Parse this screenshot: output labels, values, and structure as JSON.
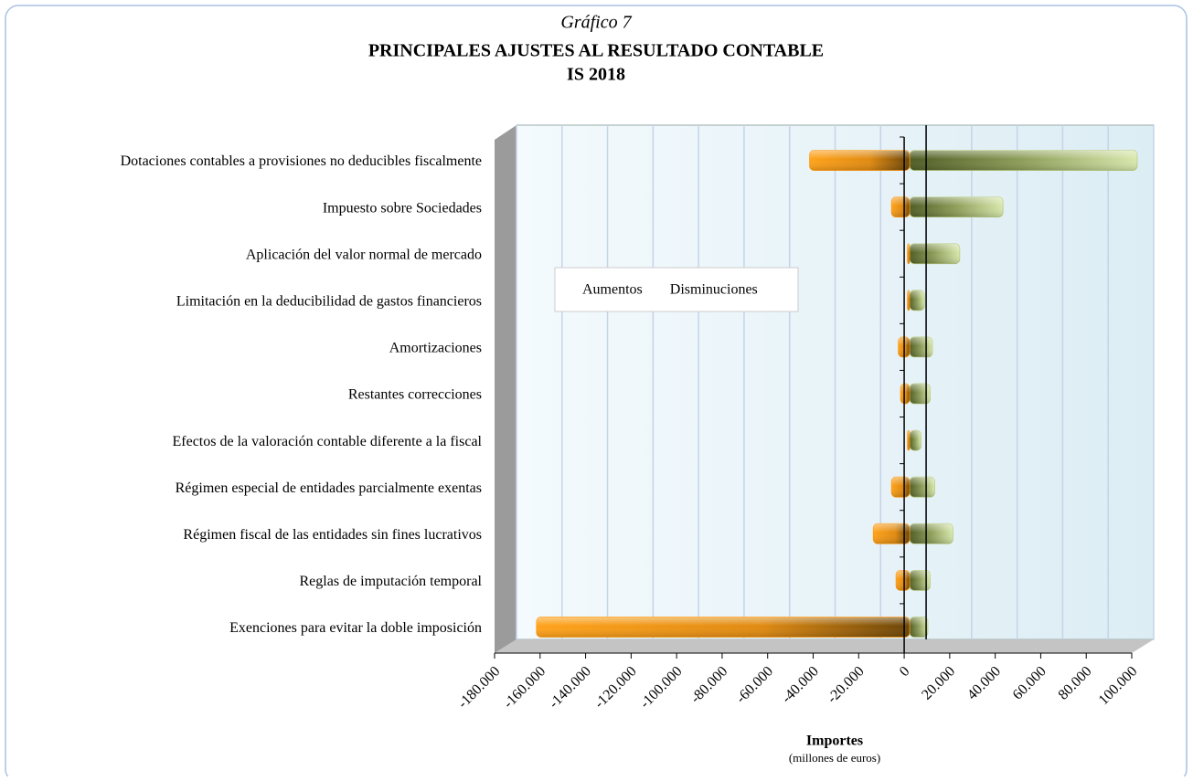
{
  "chart_data": {
    "type": "bar",
    "orientation": "horizontal",
    "title_prefix": "Gráfico 7",
    "title": "PRINCIPALES AJUSTES AL RESULTADO CONTABLE",
    "subtitle": "IS 2018",
    "x_label": "Importes",
    "x_label_note": "(millones de euros)",
    "categories": [
      "Dotaciones contables a provisiones no deducibles fiscalmente",
      "Impuesto sobre Sociedades",
      "Aplicación del valor normal de mercado",
      "Limitación en la deducibilidad de gastos financieros",
      "Amortizaciones",
      "Restantes correcciones",
      "Efectos de la valoración contable diferente a la fiscal",
      "Régimen especial de entidades parcialmente exentas",
      "Régimen fiscal de las entidades sin fines lucrativos",
      "Reglas de imputación temporal",
      "Exenciones para evitar la doble imposición"
    ],
    "series": [
      {
        "name": "Aumentos",
        "color": "#b8cc80",
        "values": [
          100000,
          41000,
          22000,
          6500,
          10000,
          9000,
          5000,
          11000,
          19000,
          9000,
          8000
        ]
      },
      {
        "name": "Disminuciones",
        "color": "#ff9a10",
        "values": [
          -44000,
          -8000,
          -1000,
          -1000,
          -5000,
          -4000,
          -1000,
          -8000,
          -16000,
          -6000,
          -164000
        ]
      }
    ],
    "xlim": [
      -180000,
      100000
    ],
    "xticks": [
      {
        "value": -180000,
        "label": "-180.000"
      },
      {
        "value": -160000,
        "label": "-160.000"
      },
      {
        "value": -140000,
        "label": "-140.000"
      },
      {
        "value": -120000,
        "label": "-120.000"
      },
      {
        "value": -100000,
        "label": "-100.000"
      },
      {
        "value": -80000,
        "label": "-80.000"
      },
      {
        "value": -60000,
        "label": "-60.000"
      },
      {
        "value": -40000,
        "label": "-40.000"
      },
      {
        "value": -20000,
        "label": "-20.000"
      },
      0,
      {
        "value": 20000,
        "label": "20.000"
      },
      {
        "value": 40000,
        "label": "40.000"
      },
      {
        "value": 60000,
        "label": "60.000"
      },
      {
        "value": 80000,
        "label": "80.000"
      },
      {
        "value": 100000,
        "label": "100.000"
      }
    ],
    "grid": true
  }
}
